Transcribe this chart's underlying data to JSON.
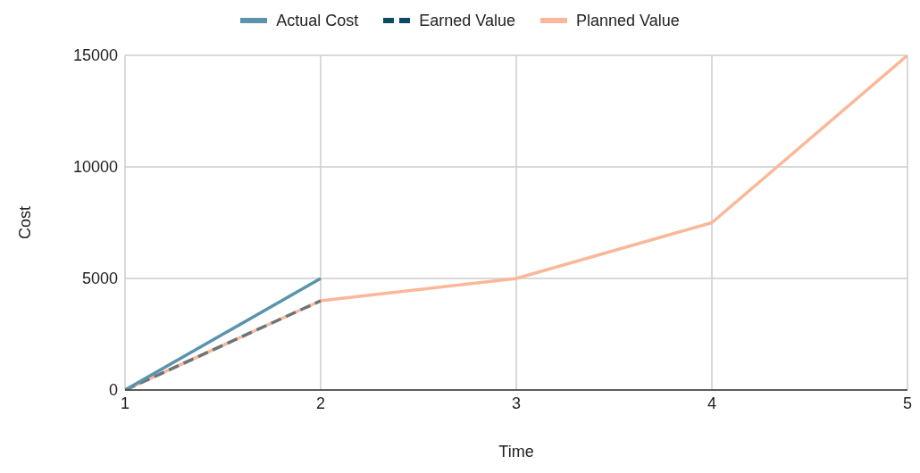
{
  "chart_data": {
    "type": "line",
    "xlabel": "Time",
    "ylabel": "Cost",
    "xlim": [
      1,
      5
    ],
    "xticks": [
      1,
      2,
      3,
      4,
      5
    ],
    "ylim": [
      0,
      15000
    ],
    "yticks": [
      0,
      5000,
      10000,
      15000
    ],
    "grid": true,
    "legend": "top",
    "marker": "none",
    "series": [
      {
        "name": "Actual Cost",
        "color": "#5b93ad",
        "x": [
          1,
          2
        ],
        "values": [
          0,
          5000
        ],
        "line_style": "solid"
      },
      {
        "name": "Earned Value",
        "color": "#0d4a63",
        "x": [
          1,
          2
        ],
        "values": [
          0,
          4000
        ],
        "line_style": "dashed"
      },
      {
        "name": "Planned Value",
        "color": "#fbb799",
        "x": [
          1,
          2,
          3,
          4,
          5
        ],
        "values": [
          0,
          4000,
          5000,
          7500,
          15000
        ],
        "line_style": "solid"
      }
    ]
  }
}
